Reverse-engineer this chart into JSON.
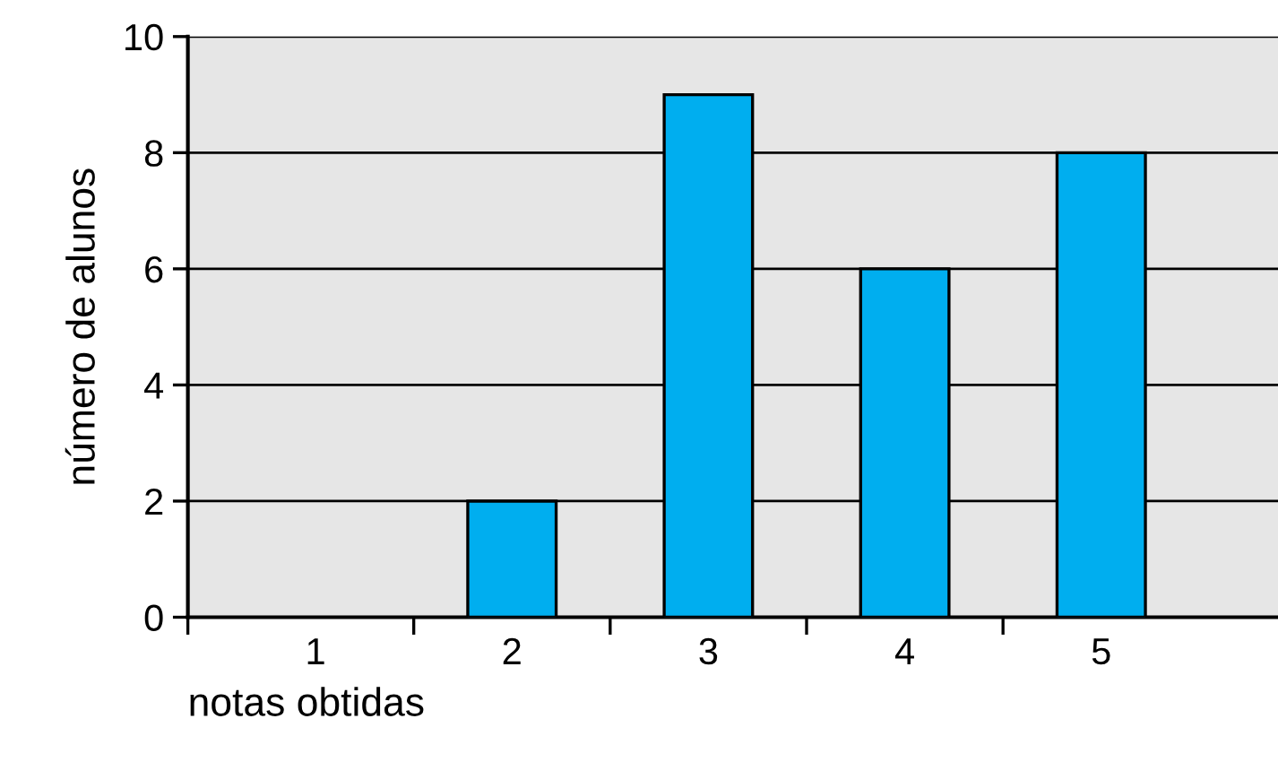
{
  "chart_data": {
    "type": "bar",
    "xlabel": "notas obtidas",
    "ylabel": "número de alunos",
    "categories": [
      "1",
      "2",
      "3",
      "4",
      "5"
    ],
    "values": [
      0,
      2,
      9,
      6,
      8
    ],
    "color": "#00aeef",
    "ylim": [
      0,
      10
    ],
    "yticks": [
      0,
      2,
      4,
      6,
      8,
      10
    ],
    "grid": "y"
  }
}
